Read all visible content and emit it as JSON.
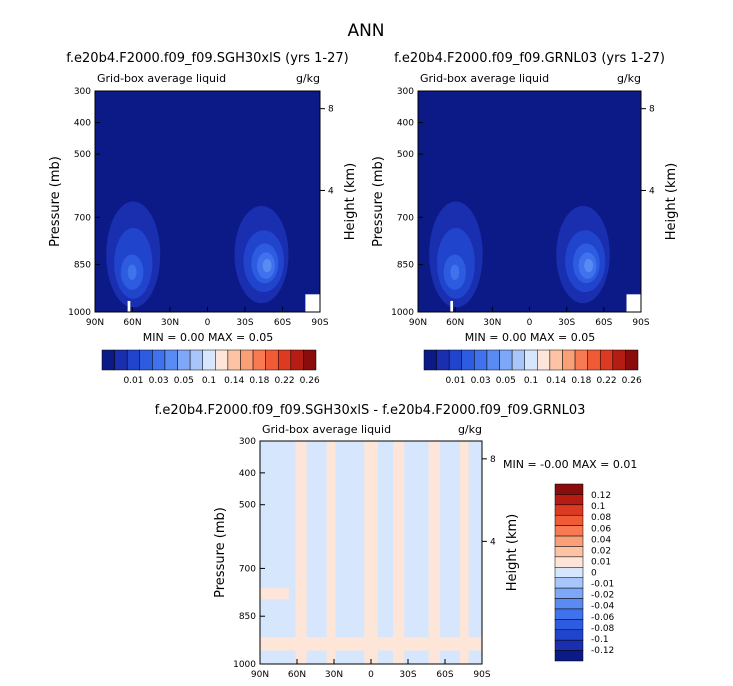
{
  "page_title": "ANN",
  "colors": {
    "cbar_top": [
      "#0c1a87",
      "#1a2eb0",
      "#2144cc",
      "#2d5ce0",
      "#3f72ec",
      "#5a8bf2",
      "#7ea8f7",
      "#a9c6fa",
      "#d6e6fd",
      "#fde6d8",
      "#fcc4a4",
      "#faa078",
      "#f77a52",
      "#f05a35",
      "#dc3a22",
      "#b51d14",
      "#8a0c0c"
    ],
    "cbar_diff": [
      "#8a0c0c",
      "#b51d14",
      "#dc3a22",
      "#f05a35",
      "#f77a52",
      "#faa078",
      "#fcc4a4",
      "#fde6d8",
      "#d6e6fd",
      "#a9c6fa",
      "#7ea8f7",
      "#5a8bf2",
      "#3f72ec",
      "#2d5ce0",
      "#2144cc",
      "#1a2eb0",
      "#0c1a87"
    ]
  },
  "chart_data": [
    {
      "type": "contour",
      "title": "f.e20b4.F2000.f09_f09.SGH30xlS (yrs 1-27)",
      "subtitle_left": "Grid-box average liquid",
      "subtitle_right": "g/kg",
      "ylabel": "Pressure (mb)",
      "y2label": "Height (km)",
      "xticks": [
        "90N",
        "60N",
        "30N",
        "0",
        "30S",
        "60S",
        "90S"
      ],
      "yticks": [
        300,
        400,
        500,
        700,
        850,
        1000
      ],
      "ylim": [
        1000,
        300
      ],
      "y2ticks": [
        8,
        4
      ],
      "stats": "MIN =    0.00   MAX =    0.05",
      "cbar_labels": [
        "0.01",
        "0.03",
        "0.05",
        "0.1",
        "0.14",
        "0.18",
        "0.22",
        "0.26"
      ]
    },
    {
      "type": "contour",
      "title": "f.e20b4.F2000.f09_f09.GRNL03 (yrs 1-27)",
      "subtitle_left": "Grid-box average liquid",
      "subtitle_right": "g/kg",
      "ylabel": "Pressure (mb)",
      "y2label": "Height (km)",
      "xticks": [
        "90N",
        "60N",
        "30N",
        "0",
        "30S",
        "60S",
        "90S"
      ],
      "yticks": [
        300,
        400,
        500,
        700,
        850,
        1000
      ],
      "ylim": [
        1000,
        300
      ],
      "y2ticks": [
        8,
        4
      ],
      "stats": "MIN =    0.00   MAX =    0.05",
      "cbar_labels": [
        "0.01",
        "0.03",
        "0.05",
        "0.1",
        "0.14",
        "0.18",
        "0.22",
        "0.26"
      ]
    },
    {
      "type": "contour",
      "title": "f.e20b4.F2000.f09_f09.SGH30xlS - f.e20b4.F2000.f09_f09.GRNL03",
      "subtitle_left": "Grid-box average liquid",
      "subtitle_right": "g/kg",
      "ylabel": "Pressure (mb)",
      "y2label": "Height (km)",
      "xticks": [
        "90N",
        "60N",
        "30N",
        "0",
        "30S",
        "60S",
        "90S"
      ],
      "yticks": [
        300,
        400,
        500,
        700,
        850,
        1000
      ],
      "ylim": [
        1000,
        300
      ],
      "y2ticks": [
        8,
        4
      ],
      "stats": "MIN =   -0.00   MAX =    0.01",
      "cbar_labels": [
        "0.12",
        "0.1",
        "0.08",
        "0.06",
        "0.04",
        "0.02",
        "0.01",
        "0",
        "-0.01",
        "-0.02",
        "-0.04",
        "-0.06",
        "-0.08",
        "-0.1",
        "-0.12"
      ]
    }
  ]
}
